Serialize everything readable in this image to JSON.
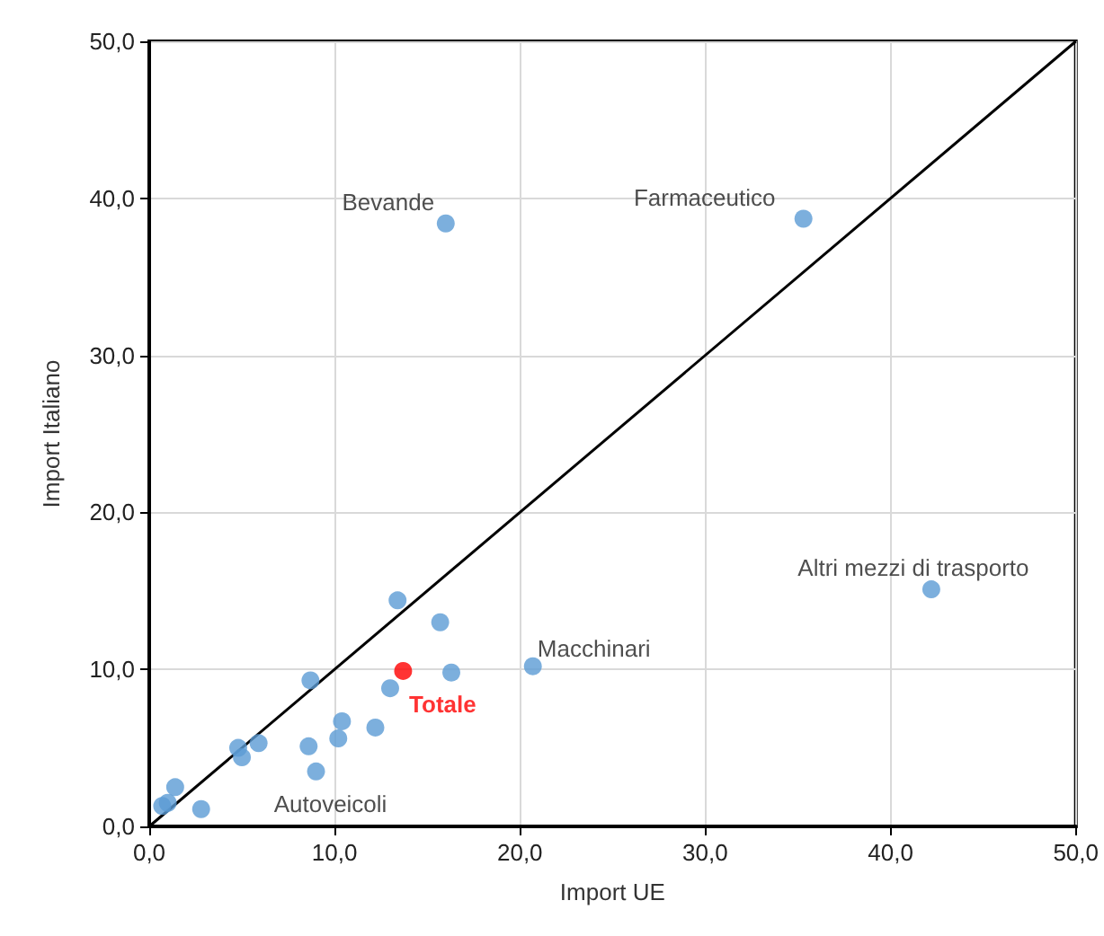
{
  "chart_data": {
    "type": "scatter",
    "xlabel": "Import UE",
    "ylabel": "Import Italiano",
    "xlim": [
      0,
      50
    ],
    "ylim": [
      0,
      50
    ],
    "xticks": [
      {
        "value": 0,
        "label": "0,0"
      },
      {
        "value": 10,
        "label": "10,0"
      },
      {
        "value": 20,
        "label": "20,0"
      },
      {
        "value": 30,
        "label": "30,0"
      },
      {
        "value": 40,
        "label": "40,0"
      },
      {
        "value": 50,
        "label": "50,0"
      }
    ],
    "yticks": [
      {
        "value": 0,
        "label": "0,0"
      },
      {
        "value": 10,
        "label": "10,0"
      },
      {
        "value": 20,
        "label": "20,0"
      },
      {
        "value": 30,
        "label": "30,0"
      },
      {
        "value": 40,
        "label": "40,0"
      },
      {
        "value": 50,
        "label": "50,0"
      }
    ],
    "grid": true,
    "legend": false,
    "marker": "circle",
    "series": [
      {
        "color": "#5b9bd5",
        "x": [
          16.0,
          35.3,
          42.2,
          13.4,
          15.7,
          16.3,
          20.7,
          8.7,
          13.0,
          10.4,
          12.2,
          10.2,
          8.6,
          5.9,
          4.8,
          5.0,
          9.0,
          1.4,
          1.0,
          0.7,
          2.8
        ],
        "values": [
          38.4,
          38.7,
          15.1,
          14.4,
          13.0,
          9.8,
          10.2,
          9.3,
          8.8,
          6.7,
          6.3,
          5.6,
          5.1,
          5.3,
          5.0,
          4.4,
          3.5,
          2.5,
          1.5,
          1.3,
          1.1
        ]
      },
      {
        "name": "Totale",
        "color": "#ff0000",
        "x": [
          13.7
        ],
        "values": [
          9.9
        ]
      },
      {
        "type": "line",
        "color": "#000000",
        "x": [
          0,
          50
        ],
        "values": [
          0,
          50
        ],
        "marker": "none"
      }
    ],
    "annotations": [
      {
        "text": "Bevande",
        "x": 16.0,
        "y": 38.4
      },
      {
        "text": "Farmaceutico",
        "x": 35.3,
        "y": 38.7
      },
      {
        "text": "Altri mezzi di trasporto",
        "x": 42.2,
        "y": 15.1
      },
      {
        "text": "Macchinari",
        "x": 20.7,
        "y": 10.2
      },
      {
        "text": "Autoveicoli",
        "x": 9.0,
        "y": 3.5
      }
    ]
  }
}
